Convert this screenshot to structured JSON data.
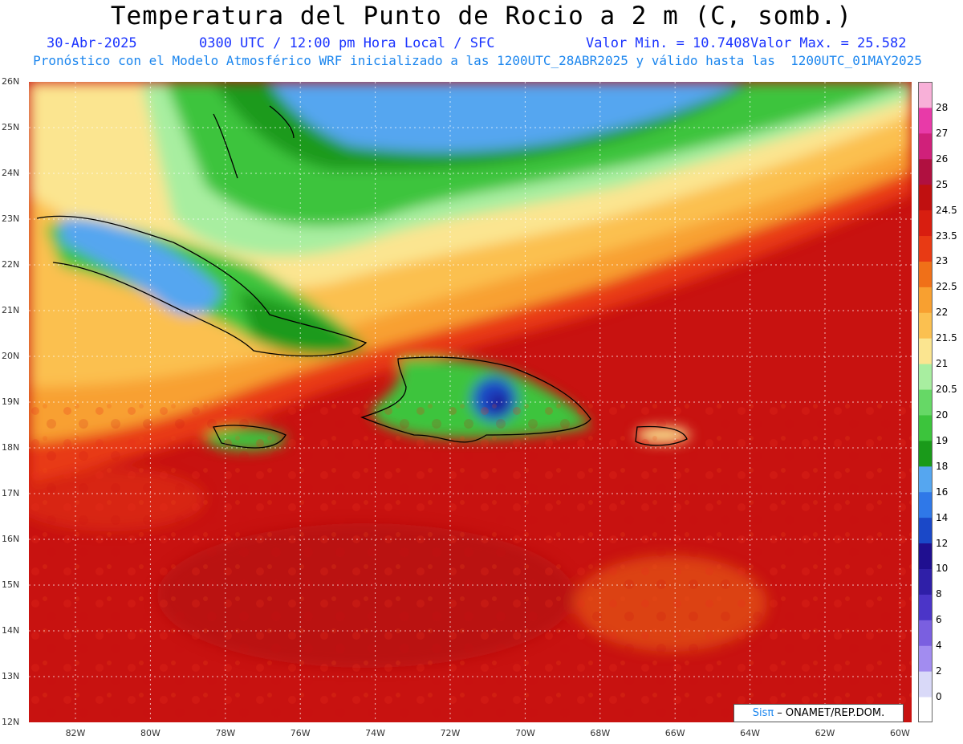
{
  "title": "Temperatura del Punto de Rocio a 2 m (C, somb.)",
  "subtitle": {
    "date": "30-Abr-2025",
    "time": "0300 UTC / 12:00 pm Hora Local / SFC",
    "min": "Valor Min. = 10.7408",
    "max": "Valor Max. = 25.582"
  },
  "model_line": "Pronóstico con el Modelo Atmosférico WRF inicializado a las 1200UTC_28ABR2025 y válido hasta las  1200UTC_01MAY2025",
  "lat_labels": [
    "26N",
    "25N",
    "24N",
    "23N",
    "22N",
    "21N",
    "20N",
    "19N",
    "18N",
    "17N",
    "16N",
    "15N",
    "14N",
    "13N",
    "12N"
  ],
  "lon_labels": [
    "82W",
    "80W",
    "78W",
    "76W",
    "74W",
    "72W",
    "70W",
    "68W",
    "66W",
    "64W",
    "62W",
    "60W"
  ],
  "colorbar": {
    "labels": [
      "0",
      "2",
      "4",
      "6",
      "8",
      "10",
      "12",
      "14",
      "16",
      "18",
      "19",
      "20",
      "20.5",
      "21",
      "21.5",
      "22",
      "22.5",
      "23",
      "23.5",
      "24.5",
      "25",
      "26",
      "27",
      "28"
    ],
    "colors": [
      "#ffffff",
      "#d9d9f8",
      "#a28cf0",
      "#7a5fe0",
      "#4b35c8",
      "#2f1fa8",
      "#1f0f90",
      "#1a48c8",
      "#2f78e8",
      "#55a6f0",
      "#1a9a1a",
      "#3cc43c",
      "#66d866",
      "#a8eea0",
      "#fbe590",
      "#fbc050",
      "#f8a030",
      "#f07018",
      "#e83a14",
      "#d81e10",
      "#c01010",
      "#b01040",
      "#d0207a",
      "#e83aa8",
      "#f8b0d8"
    ]
  },
  "credit": {
    "sis": "Sisπ",
    "text": "– ONAMET/REP.DOM."
  }
}
